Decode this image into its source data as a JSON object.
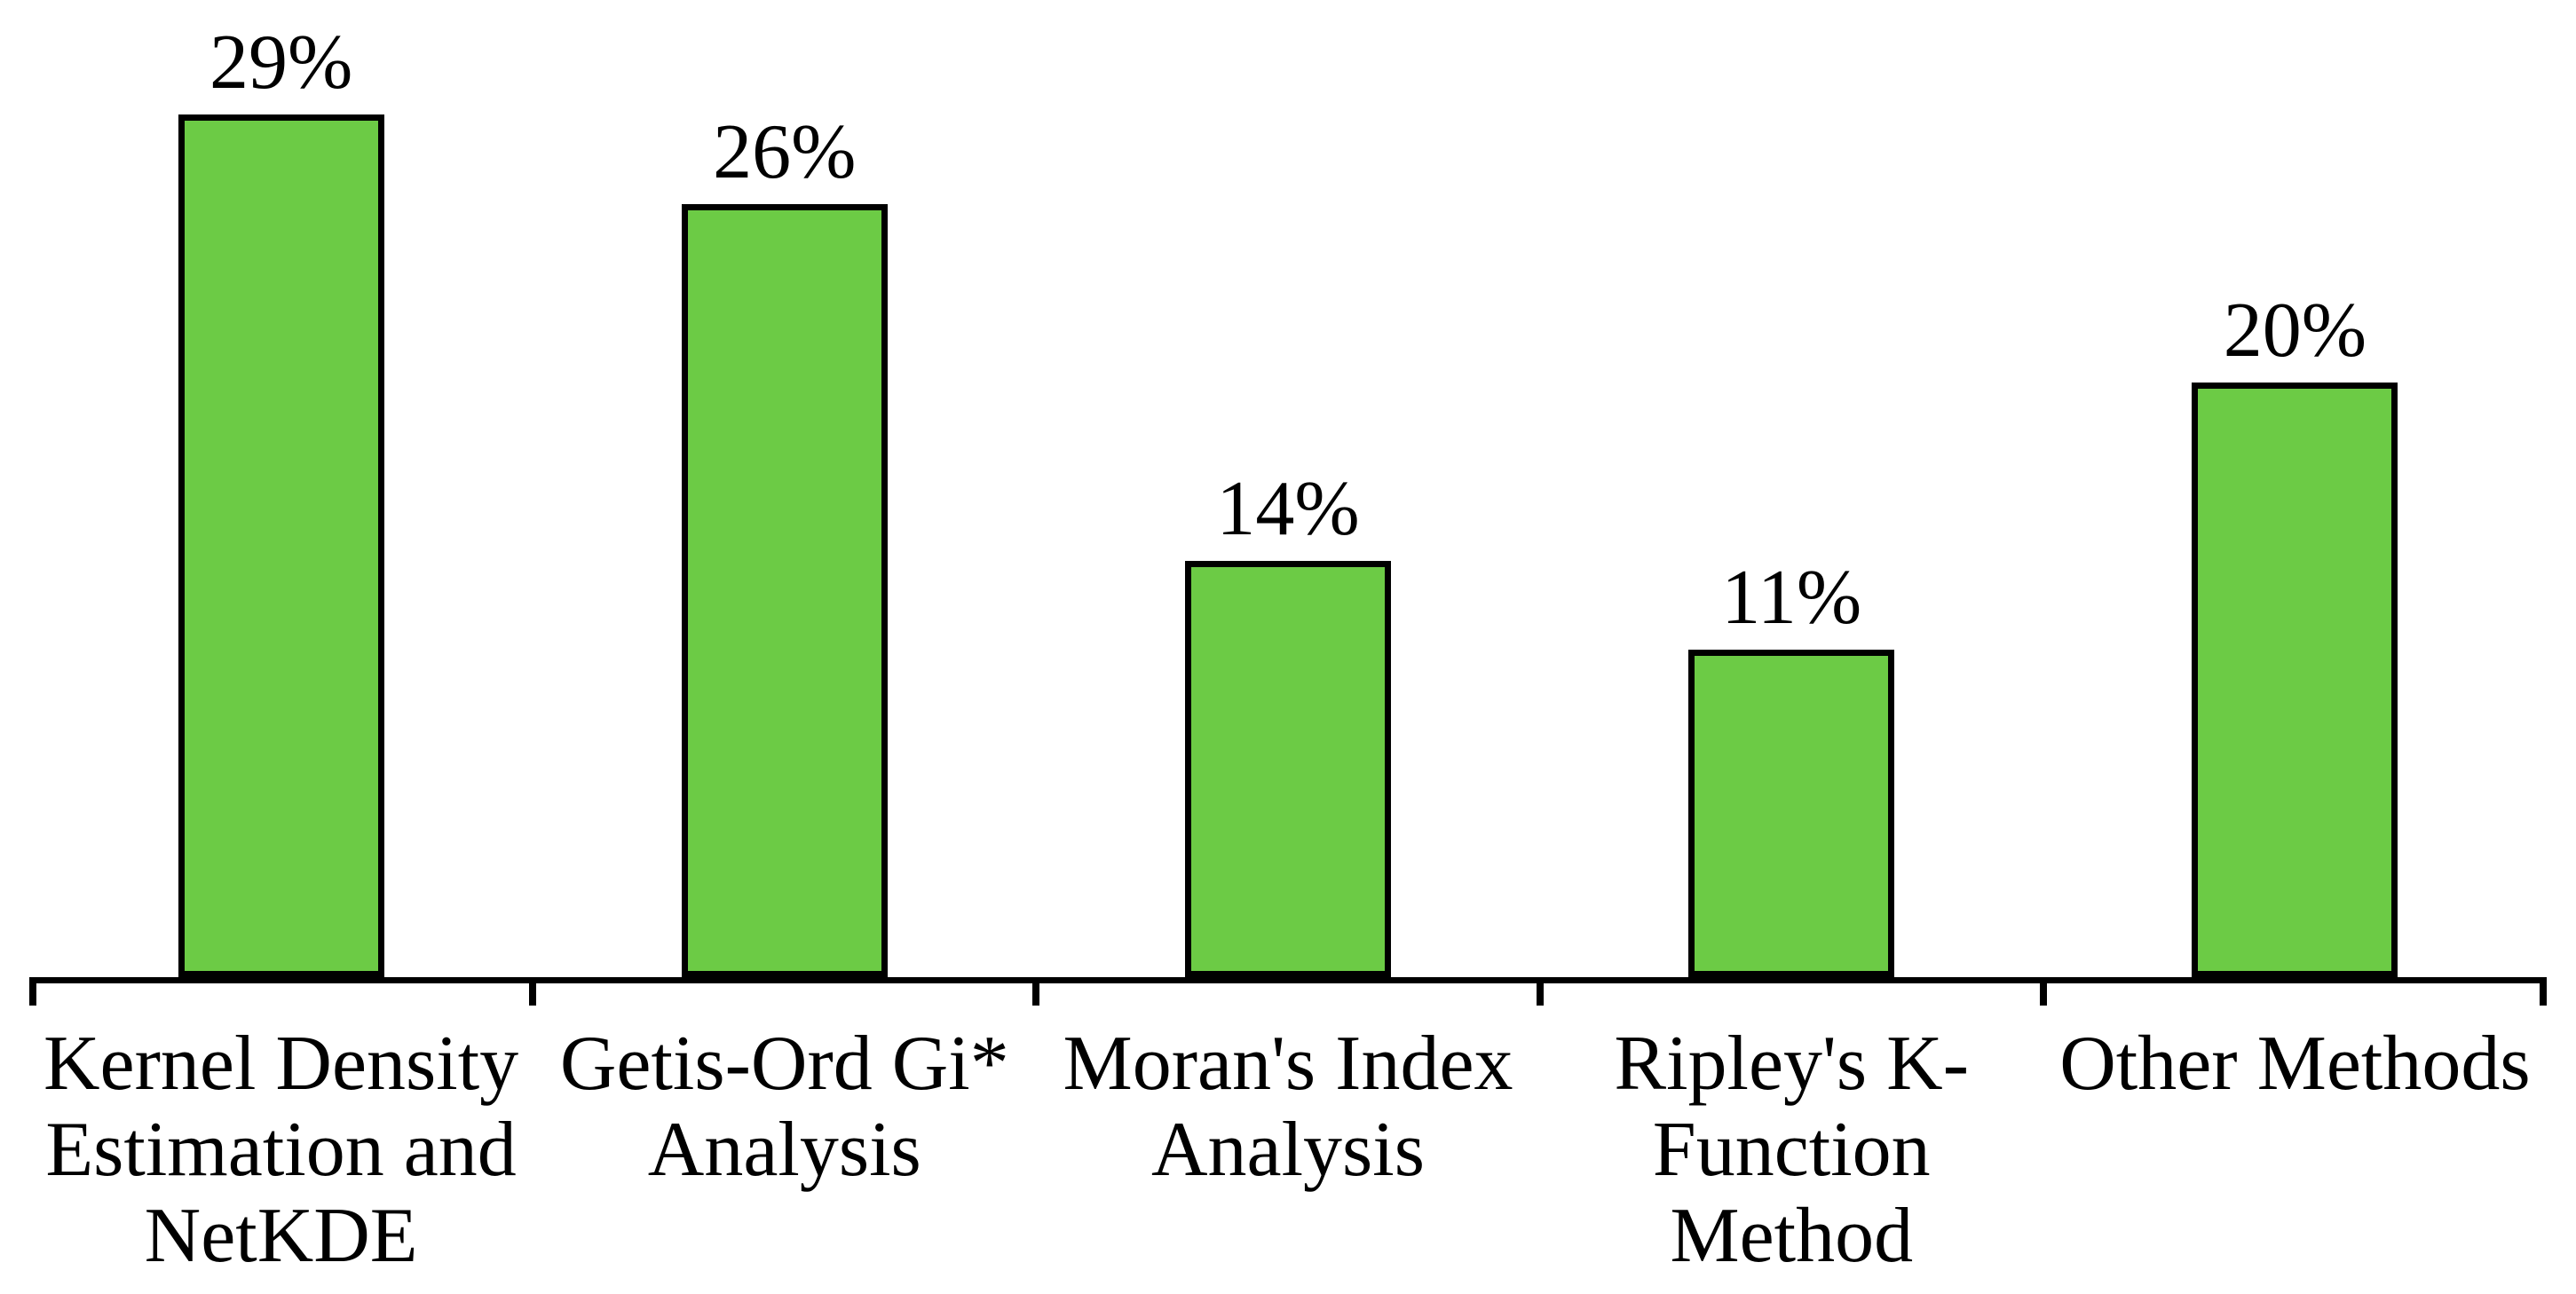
{
  "chart_data": {
    "type": "bar",
    "title": "",
    "xlabel": "",
    "ylabel": "",
    "categories": [
      "Kernel Density Estimation and NetKDE",
      "Getis-Ord Gi* Analysis",
      "Moran's Index Analysis",
      "Ripley's K-Function Method",
      "Other Methods"
    ],
    "category_lines": [
      [
        "Kernel Density",
        "Estimation and",
        "NetKDE"
      ],
      [
        "Getis-Ord Gi*",
        "Analysis"
      ],
      [
        "Moran's Index",
        "Analysis"
      ],
      [
        "Ripley's K-",
        "Function",
        "Method"
      ],
      [
        "Other Methods"
      ]
    ],
    "values": [
      29,
      26,
      14,
      11,
      20
    ],
    "value_labels": [
      "29%",
      "26%",
      "14%",
      "11%",
      "20%"
    ],
    "ylim": [
      0,
      33
    ],
    "grid": false,
    "legend": false,
    "bar_fill_color": "#6CCB45",
    "bar_border_color": "#000000",
    "axis_color": "#000000",
    "text_color": "#000000"
  }
}
